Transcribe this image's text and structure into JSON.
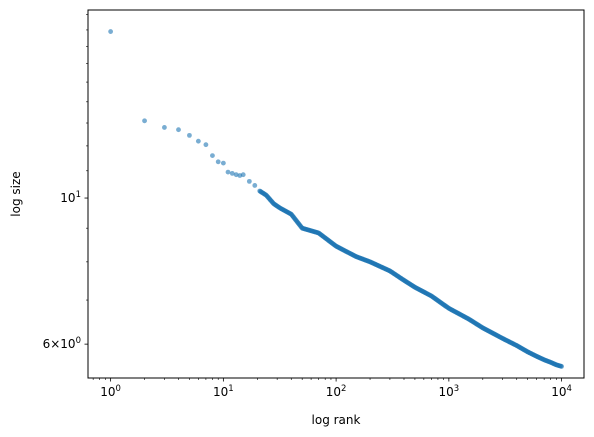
{
  "chart_data": {
    "type": "scatter",
    "xlabel": "log rank",
    "ylabel": "log size",
    "x_scale": "log",
    "y_scale": "log",
    "xlim": [
      0.63,
      15800
    ],
    "ylim": [
      5.33,
      19.3
    ],
    "grid": false,
    "marker_color": "#1f77b4",
    "marker_alpha": 0.6,
    "x_major_ticks": [
      {
        "value": 1,
        "base": "10",
        "exp": "0"
      },
      {
        "value": 10,
        "base": "10",
        "exp": "1"
      },
      {
        "value": 100,
        "base": "10",
        "exp": "2"
      },
      {
        "value": 1000,
        "base": "10",
        "exp": "3"
      },
      {
        "value": 10000,
        "base": "10",
        "exp": "4"
      }
    ],
    "y_major_ticks": [
      {
        "value": 6,
        "prefix": "6×",
        "base": "10",
        "exp": "0"
      },
      {
        "value": 10,
        "prefix": "",
        "base": "10",
        "exp": "1"
      }
    ],
    "points": [
      [
        1,
        17.9
      ],
      [
        2,
        13.1
      ],
      [
        3,
        12.8
      ],
      [
        4,
        12.7
      ],
      [
        5,
        12.45
      ],
      [
        6,
        12.2
      ],
      [
        7,
        12.05
      ],
      [
        8,
        11.6
      ],
      [
        9,
        11.35
      ],
      [
        10,
        11.3
      ],
      [
        11,
        10.95
      ],
      [
        12,
        10.9
      ],
      [
        13,
        10.85
      ],
      [
        14,
        10.82
      ],
      [
        15,
        10.85
      ],
      [
        17,
        10.6
      ],
      [
        19,
        10.45
      ],
      [
        21,
        10.25
      ],
      [
        24,
        10.1
      ],
      [
        28,
        9.8
      ],
      [
        32,
        9.65
      ],
      [
        40,
        9.45
      ],
      [
        50,
        9.0
      ],
      [
        70,
        8.85
      ],
      [
        100,
        8.45
      ],
      [
        150,
        8.15
      ],
      [
        200,
        8.0
      ],
      [
        300,
        7.75
      ],
      [
        400,
        7.5
      ],
      [
        500,
        7.32
      ],
      [
        700,
        7.1
      ],
      [
        1000,
        6.8
      ],
      [
        1500,
        6.55
      ],
      [
        2000,
        6.35
      ],
      [
        3000,
        6.12
      ],
      [
        4000,
        5.97
      ],
      [
        5000,
        5.84
      ],
      [
        6000,
        5.75
      ],
      [
        7000,
        5.68
      ],
      [
        8000,
        5.63
      ],
      [
        9000,
        5.58
      ],
      [
        10000,
        5.55
      ]
    ]
  }
}
